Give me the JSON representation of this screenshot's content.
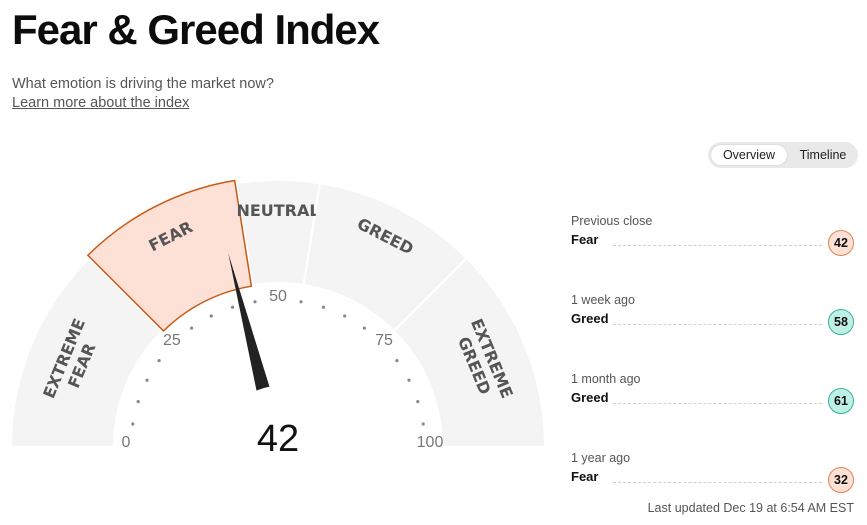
{
  "header": {
    "title": "Fear & Greed Index",
    "subtitle": "What emotion is driving the market now?",
    "learn_more": "Learn more about the index"
  },
  "view_toggle": {
    "options": [
      "Overview",
      "Timeline"
    ],
    "selected": "Overview"
  },
  "gauge": {
    "score": 42,
    "category": "FEAR",
    "zones": [
      {
        "label": "EXTREME FEAR",
        "range": [
          0,
          25
        ]
      },
      {
        "label": "FEAR",
        "range": [
          25,
          45
        ]
      },
      {
        "label": "NEUTRAL",
        "range": [
          45,
          55
        ]
      },
      {
        "label": "GREED",
        "range": [
          55,
          75
        ]
      },
      {
        "label": "EXTREME GREED",
        "range": [
          75,
          100
        ]
      }
    ],
    "ticks": [
      "0",
      "25",
      "50",
      "75",
      "100"
    ],
    "active_zone_index": 1
  },
  "history": [
    {
      "when": "Previous close",
      "category": "Fear",
      "value": "42",
      "tone": "fear"
    },
    {
      "when": "1 week ago",
      "category": "Greed",
      "value": "58",
      "tone": "greed"
    },
    {
      "when": "1 month ago",
      "category": "Greed",
      "value": "61",
      "tone": "greed"
    },
    {
      "when": "1 year ago",
      "category": "Fear",
      "value": "32",
      "tone": "fear"
    }
  ],
  "last_updated": "Last updated Dec 19 at 6:54 AM EST",
  "colors": {
    "zone_fill": "#f4f4f4",
    "active_fill": "#fde0d6",
    "active_stroke": "#c65a14",
    "fear_badge_fill": "#fde0d6",
    "fear_badge_stroke": "#e2834e",
    "greed_badge_fill": "#bff0e6",
    "greed_badge_stroke": "#39b39b",
    "needle": "#222222"
  }
}
